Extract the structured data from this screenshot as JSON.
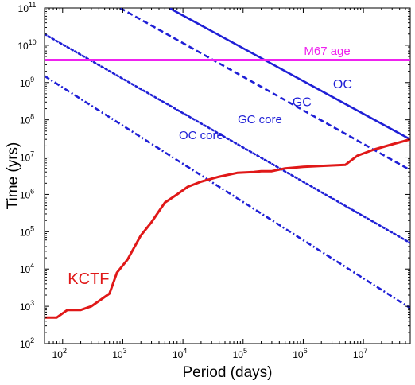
{
  "chart_data": {
    "type": "line",
    "title": "",
    "xlabel": "Period (days)",
    "ylabel": "Time (yrs)",
    "xscale": "log",
    "yscale": "log",
    "xlim": [
      50,
      60000000
    ],
    "ylim": [
      100,
      100000000000
    ],
    "grid": false,
    "legend": "none",
    "x_ticks": [
      {
        "value": 100,
        "base": "10",
        "exp": "2"
      },
      {
        "value": 1000,
        "base": "10",
        "exp": "3"
      },
      {
        "value": 10000,
        "base": "10",
        "exp": "4"
      },
      {
        "value": 100000,
        "base": "10",
        "exp": "5"
      },
      {
        "value": 1000000,
        "base": "10",
        "exp": "6"
      },
      {
        "value": 10000000,
        "base": "10",
        "exp": "7"
      }
    ],
    "y_ticks": [
      {
        "value": 100,
        "base": "10",
        "exp": "2"
      },
      {
        "value": 1000,
        "base": "10",
        "exp": "3"
      },
      {
        "value": 10000,
        "base": "10",
        "exp": "4"
      },
      {
        "value": 100000,
        "base": "10",
        "exp": "5"
      },
      {
        "value": 1000000,
        "base": "10",
        "exp": "6"
      },
      {
        "value": 10000000,
        "base": "10",
        "exp": "7"
      },
      {
        "value": 100000000,
        "base": "10",
        "exp": "8"
      },
      {
        "value": 1000000000,
        "base": "10",
        "exp": "9"
      },
      {
        "value": 10000000000,
        "base": "10",
        "exp": "10"
      },
      {
        "value": 100000000000,
        "base": "10",
        "exp": "11"
      }
    ],
    "series": [
      {
        "name": "OC",
        "color": "#1f1fd6",
        "dash": "solid",
        "x": [
          5900,
          60000000
        ],
        "y": [
          100000000000,
          30000000
        ]
      },
      {
        "name": "GC",
        "color": "#1f1fd6",
        "dash": "dashed",
        "x": [
          900,
          60000000
        ],
        "y": [
          100000000000,
          4500000
        ]
      },
      {
        "name": "GC core",
        "color": "#1f1fd6",
        "dash": "dotted",
        "x": [
          50,
          60000000
        ],
        "y": [
          20000000000,
          50000
        ]
      },
      {
        "name": "OC core",
        "color": "#1f1fd6",
        "dash": "dashdot",
        "x": [
          50,
          60000000
        ],
        "y": [
          1500000000,
          900
        ]
      },
      {
        "name": "M67 age",
        "color": "#ee22ee",
        "dash": "solid",
        "x": [
          50,
          60000000
        ],
        "y": [
          4000000000,
          4000000000
        ]
      },
      {
        "name": "KCTF",
        "color": "#e01818",
        "dash": "solid",
        "x": [
          50,
          80,
          120,
          200,
          300,
          600,
          800,
          1200,
          2000,
          3000,
          5000,
          8000,
          12000,
          20000,
          40000,
          80000,
          150000,
          200000,
          300000,
          500000,
          1000000,
          2000000,
          3000000,
          5000000,
          8000000,
          15000000,
          30000000,
          60000000
        ],
        "y": [
          500,
          500,
          800,
          800,
          1000,
          2200,
          8000,
          18000,
          80000,
          180000,
          600000,
          1000000,
          1600000,
          2200000,
          3000000,
          3800000,
          4000000,
          4200000,
          4200000,
          5000000,
          5500000,
          5800000,
          6000000,
          6200000,
          11000000,
          16000000,
          22000000,
          30000000
        ]
      }
    ],
    "annotations": [
      {
        "text": "M67 age",
        "x": 2500000,
        "y": 5500000000,
        "color": "#ee22ee",
        "size": 15
      },
      {
        "text": "OC",
        "x": 4500000,
        "y": 700000000,
        "color": "#1f1fd6",
        "size": 16
      },
      {
        "text": "GC",
        "x": 950000,
        "y": 230000000,
        "color": "#1f1fd6",
        "size": 16
      },
      {
        "text": "GC core",
        "x": 190000,
        "y": 80000000,
        "color": "#1f1fd6",
        "size": 15
      },
      {
        "text": "OC core",
        "x": 20000,
        "y": 30000000,
        "color": "#1f1fd6",
        "size": 15
      },
      {
        "text": "KCTF",
        "x": 270,
        "y": 4000,
        "color": "#e01818",
        "size": 20
      }
    ]
  }
}
